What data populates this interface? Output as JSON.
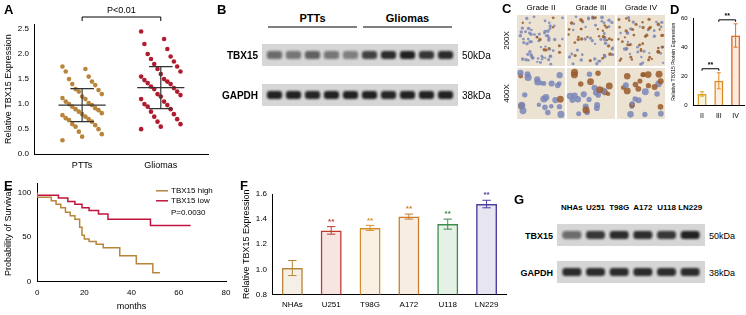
{
  "chart_data": [
    {
      "panel": "A",
      "type": "scatter",
      "y_label": "Relative TBX15 Expression",
      "categories": [
        "PTTs",
        "Gliomas"
      ],
      "values": [
        [
          1.75,
          1.7,
          1.65,
          1.55,
          1.5,
          1.45,
          1.4,
          1.38,
          1.3,
          1.28,
          1.25,
          1.2,
          1.15,
          1.12,
          1.1,
          1.05,
          1.02,
          1.0,
          0.98,
          0.95,
          0.92,
          0.9,
          0.88,
          0.85,
          0.82,
          0.8,
          0.78,
          0.75,
          0.72,
          0.7,
          0.68,
          0.65,
          0.6,
          0.58,
          0.55,
          0.5,
          0.45,
          0.4,
          0.35,
          0.28
        ],
        [
          2.45,
          2.3,
          2.2,
          2.1,
          2.0,
          1.95,
          1.9,
          1.85,
          1.8,
          1.75,
          1.7,
          1.65,
          1.6,
          1.55,
          1.5,
          1.48,
          1.45,
          1.42,
          1.4,
          1.35,
          1.32,
          1.3,
          1.25,
          1.2,
          1.18,
          1.15,
          1.1,
          1.05,
          1.0,
          0.98,
          0.95,
          0.9,
          0.85,
          0.8,
          0.75,
          0.7,
          0.65,
          0.6,
          0.55,
          0.5
        ]
      ],
      "means": [
        0.98,
        1.33
      ],
      "sds": [
        0.33,
        0.42
      ],
      "colors": [
        "#b8863b",
        "#b01c2e"
      ],
      "ylim": [
        0,
        2.6
      ],
      "yticks": [
        {
          "value": 0,
          "label": "0.0"
        },
        0.5,
        {
          "value": 1,
          "label": "1.0"
        },
        1.5,
        {
          "value": 2,
          "label": "2.0"
        },
        2.5
      ],
      "annotation": "P<0.01",
      "grid": false
    },
    {
      "panel": "D",
      "type": "bar",
      "y_label": "Relative TBX15 Protein Expression",
      "categories": [
        "II",
        "III",
        "IV"
      ],
      "values": [
        8,
        17,
        48
      ],
      "errors": [
        1.5,
        5.5,
        8
      ],
      "colors": [
        "#d9a520",
        "#e08a1e",
        "#e56b1f"
      ],
      "ylim": [
        0,
        60
      ],
      "yticks": [
        0,
        20,
        40,
        60
      ],
      "comparisons": [
        {
          "categories": [
            "II",
            "III"
          ],
          "label": "**"
        },
        {
          "categories": [
            "III",
            "IV"
          ],
          "label": "**"
        }
      ],
      "grid": false
    },
    {
      "panel": "E",
      "type": "line",
      "x_label": "months",
      "y_label": "Probability of Survival",
      "series": [
        {
          "name": "TBX15 high",
          "color": "#b8863b",
          "x": [
            0,
            6,
            8,
            10,
            12,
            14,
            16,
            18,
            19,
            20,
            22,
            25,
            28,
            35,
            42,
            49,
            52
          ],
          "values": [
            100,
            95,
            91,
            87,
            83,
            78,
            74,
            70,
            61,
            52,
            48,
            45,
            42,
            38,
            29,
            20,
            10
          ]
        },
        {
          "name": "TBX15 low",
          "color": "#c0143c",
          "x": [
            0,
            9,
            13,
            16,
            19,
            22,
            26,
            30,
            48,
            52,
            65
          ],
          "values": [
            100,
            97,
            94,
            90,
            87,
            83,
            80,
            76,
            70,
            63,
            63
          ]
        }
      ],
      "xlim": [
        0,
        80
      ],
      "xticks": [
        0,
        20,
        40,
        60,
        80
      ],
      "ylim": [
        0,
        110
      ],
      "yticks": [
        0,
        50,
        100
      ],
      "legend": "upper right",
      "annotation": "P=0.0030",
      "line_style": "step",
      "grid": false
    },
    {
      "panel": "F",
      "type": "bar",
      "y_label": "Relative TBX15 Expression",
      "categories": [
        "NHAs",
        "U251",
        "T98G",
        "A172",
        "U118",
        "LN229"
      ],
      "values": [
        1.01,
        1.31,
        1.33,
        1.42,
        1.36,
        1.52
      ],
      "errors": [
        0.06,
        0.03,
        0.02,
        0.02,
        0.04,
        0.03
      ],
      "colors": [
        "#b8863b",
        "#c0392b",
        "#d98c2b",
        "#c97b2b",
        "#3c8c4a",
        "#4b3f9e"
      ],
      "ylim": [
        0.8,
        1.6
      ],
      "yticks": [
        0.8,
        {
          "value": 1,
          "label": "1.0"
        },
        1.2,
        1.4,
        1.6
      ],
      "annotations": [
        null,
        "**",
        "**",
        "**",
        "**",
        "**"
      ],
      "grid": false
    }
  ],
  "blots": [
    {
      "panel": "B",
      "groups": [
        {
          "label": "PTTs",
          "lanes": 5
        },
        {
          "label": "Gliomas",
          "lanes": 5
        }
      ],
      "rows": [
        {
          "label": "TBX15",
          "size": "50kDa",
          "intensity": [
            0.55,
            0.5,
            0.6,
            0.5,
            0.45,
            0.75,
            0.85,
            0.9,
            0.8,
            0.85
          ]
        },
        {
          "label": "GAPDH",
          "size": "38kDa",
          "intensity": [
            0.9,
            0.9,
            0.88,
            0.9,
            0.9,
            0.9,
            0.88,
            0.9,
            0.9,
            0.9
          ]
        }
      ]
    },
    {
      "panel": "G",
      "lane_labels": [
        "NHAs",
        "U251",
        "T98G",
        "A172",
        "U118",
        "LN229"
      ],
      "rows": [
        {
          "label": "TBX15",
          "size": "50kDa",
          "intensity": [
            0.55,
            0.8,
            0.85,
            0.85,
            0.8,
            0.9
          ]
        },
        {
          "label": "GAPDH",
          "size": "38kDa",
          "intensity": [
            0.85,
            0.85,
            0.85,
            0.85,
            0.85,
            0.85
          ]
        }
      ]
    }
  ],
  "ihc": {
    "panel": "C",
    "columns": [
      "Grade II",
      "Grade III",
      "Grade IV"
    ],
    "rows": [
      "200X",
      "400X"
    ]
  }
}
